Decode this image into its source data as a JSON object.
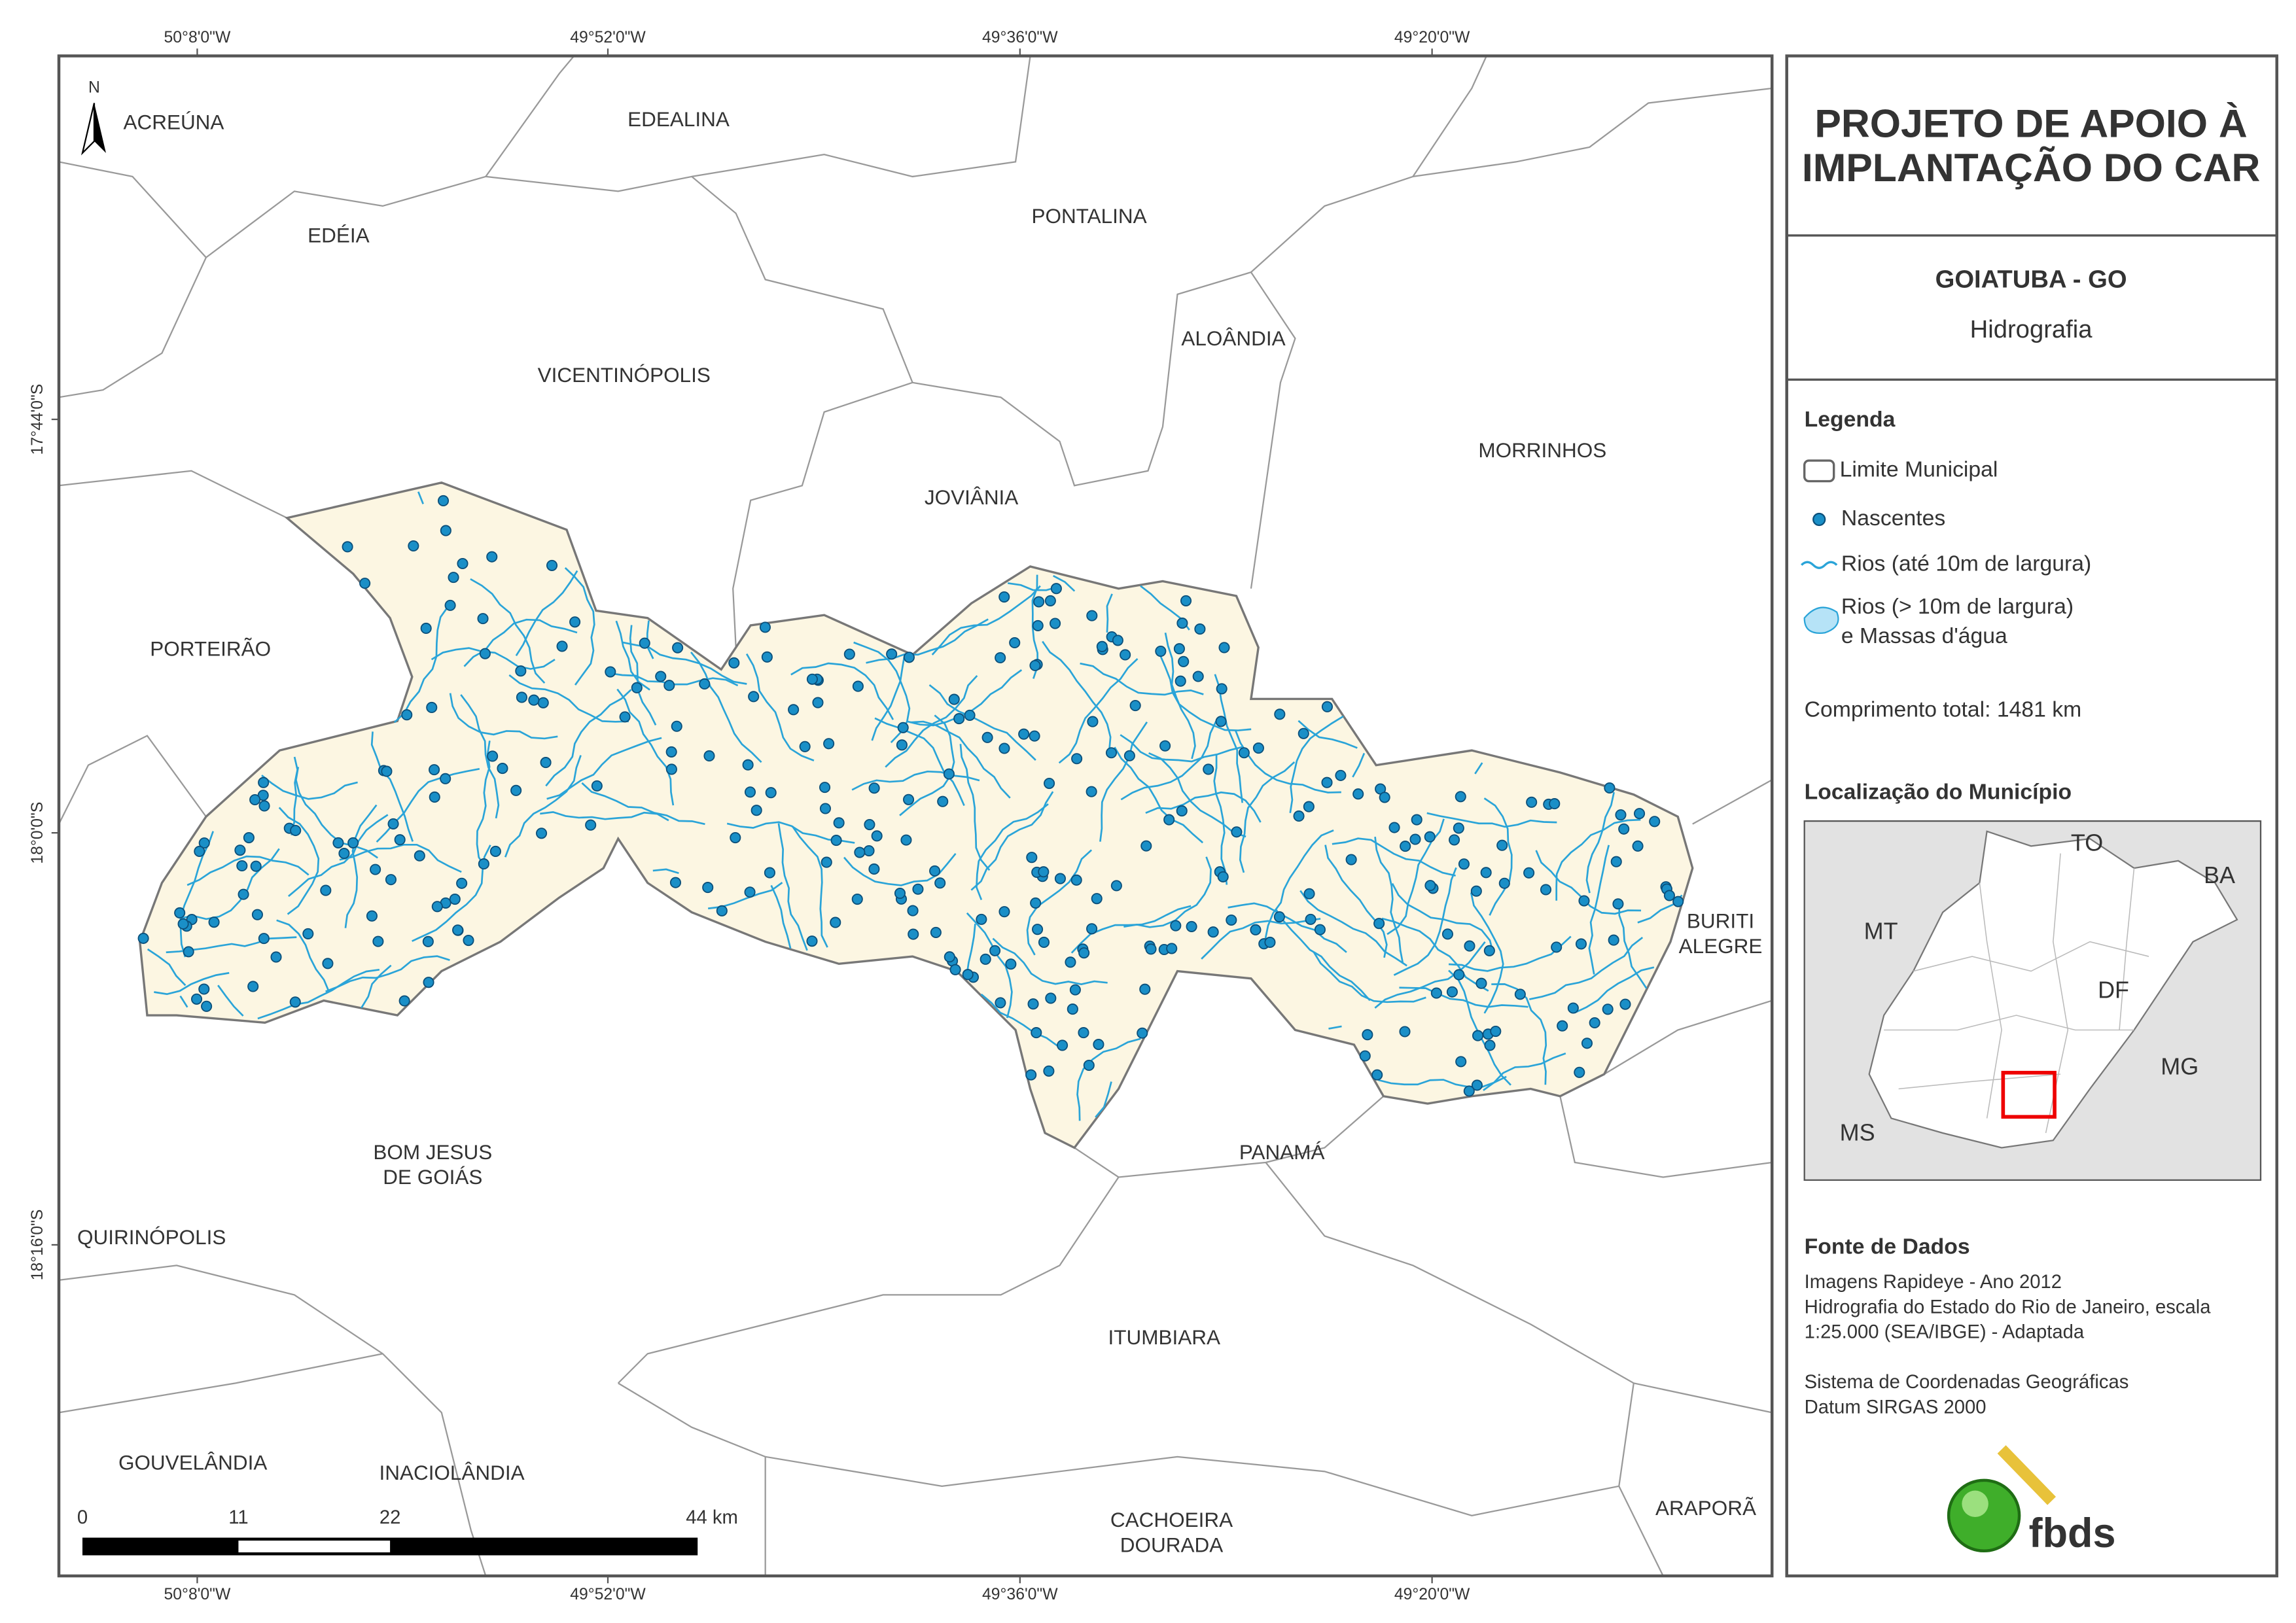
{
  "map": {
    "north": "N",
    "municipalities": [
      {
        "lines": [
          "ACREÚNA"
        ]
      },
      {
        "lines": [
          "EDEALINA"
        ]
      },
      {
        "lines": [
          "EDÉIA"
        ]
      },
      {
        "lines": [
          "PONTALINA"
        ]
      },
      {
        "lines": [
          "ALOÂNDIA"
        ]
      },
      {
        "lines": [
          "VICENTINÓPOLIS"
        ]
      },
      {
        "lines": [
          "MORRINHOS"
        ]
      },
      {
        "lines": [
          "JOVIÂNIA"
        ]
      },
      {
        "lines": [
          "PORTEIRÃO"
        ]
      },
      {
        "lines": [
          "BURITI",
          "ALEGRE"
        ]
      },
      {
        "lines": [
          "BOM JESUS",
          "DE GOIÁS"
        ]
      },
      {
        "lines": [
          "PANAMÁ"
        ]
      },
      {
        "lines": [
          "QUIRINÓPOLIS"
        ]
      },
      {
        "lines": [
          "ITUMBIARA"
        ]
      },
      {
        "lines": [
          "GOUVELÂNDIA"
        ]
      },
      {
        "lines": [
          "INACIOLÂNDIA"
        ]
      },
      {
        "lines": [
          "CACHOEIRA",
          "DOURADA"
        ]
      },
      {
        "lines": [
          "ARAPORÃ"
        ]
      }
    ],
    "coordinates": {
      "top": [
        "50°8'0\"W",
        "49°52'0\"W",
        "49°36'0\"W",
        "49°20'0\"W"
      ],
      "bottom": [
        "50°8'0\"W",
        "49°52'0\"W",
        "49°36'0\"W",
        "49°20'0\"W"
      ],
      "left": [
        "17°44'0\"S",
        "18°0'0\"S",
        "18°16'0\"S"
      ]
    },
    "scale_bar": [
      "0",
      "11",
      "22",
      "44 km"
    ]
  },
  "title": [
    "PROJETO DE APOIO À",
    "IMPLANTAÇÃO DO CAR"
  ],
  "subtitle": {
    "municipality": "GOIATUBA - GO",
    "theme": "Hidrografia"
  },
  "legend": {
    "title": "Legenda",
    "items": [
      {
        "lines": [
          "Limite Municipal"
        ]
      },
      {
        "lines": [
          "Nascentes"
        ]
      },
      {
        "lines": [
          "Rios (até 10m de largura)"
        ]
      },
      {
        "lines": [
          "Rios (> 10m de largura)",
          "e Massas d'água"
        ]
      }
    ],
    "total_length": "Comprimento total: 1481 km"
  },
  "location": {
    "title": "Localização do Município",
    "labels": [
      "TO",
      "BA",
      "MT",
      "DF",
      "MG",
      "MS"
    ]
  },
  "sources": {
    "title": "Fonte de Dados",
    "lines": [
      "Imagens Rapideye - Ano 2012",
      "Hidrografia do Estado do Rio de Janeiro, escala",
      "1:25.000 (SEA/IBGE) - Adaptada",
      "",
      "Sistema de Coordenadas Geográficas",
      "Datum SIRGAS 2000"
    ]
  },
  "logo": "fbds"
}
